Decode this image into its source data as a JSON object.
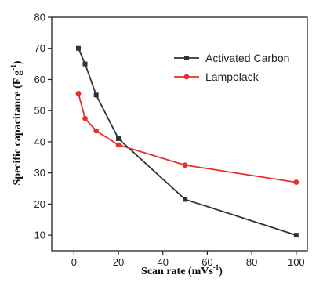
{
  "chart_data": {
    "type": "line",
    "xlabel": "Scan rate (mVs",
    "xlabel_sup": "-1",
    "xlabel_end": ")",
    "ylabel": "Specific capacitance (F g",
    "ylabel_sup": "-1",
    "ylabel_end": ")",
    "xlim": [
      -10,
      105
    ],
    "ylim": [
      5,
      80
    ],
    "xticks": [
      0,
      20,
      40,
      60,
      80,
      100
    ],
    "yticks": [
      10,
      20,
      30,
      40,
      50,
      60,
      70,
      80
    ],
    "legend_position": "top-right",
    "series": [
      {
        "name": "Activated Carbon",
        "color": "#333333",
        "marker": "square",
        "x": [
          2,
          5,
          10,
          20,
          50,
          100
        ],
        "y": [
          70,
          65,
          55,
          41,
          21.5,
          10
        ]
      },
      {
        "name": "Lampblack",
        "color": "#e03030",
        "marker": "circle",
        "x": [
          2,
          5,
          10,
          20,
          50,
          100
        ],
        "y": [
          55.5,
          47.5,
          43.5,
          39,
          32.5,
          27
        ]
      }
    ]
  }
}
